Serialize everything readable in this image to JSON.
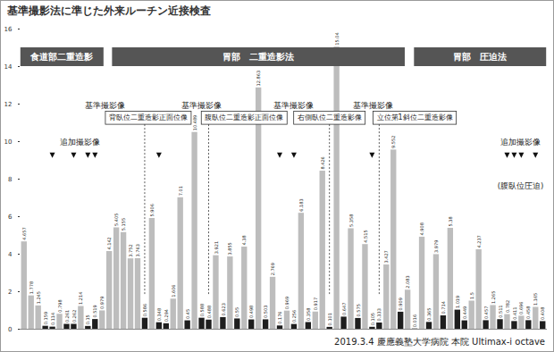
{
  "chart_data": {
    "type": "bar",
    "title": "基準撮影法に準じた外来ルーチン近接検査",
    "categories": [
      null,
      null,
      null,
      null,
      null,
      null,
      null,
      null,
      null,
      null,
      null,
      null,
      null,
      null,
      null,
      null,
      null,
      null,
      null,
      null,
      null,
      null,
      null,
      null,
      null,
      null,
      null,
      null,
      null,
      null,
      null,
      null,
      null,
      null,
      null,
      null,
      null,
      null,
      null,
      null,
      null,
      null,
      null,
      null,
      null,
      null,
      null,
      null,
      null,
      null,
      null,
      null,
      null,
      null,
      null,
      null,
      null,
      null,
      null,
      null,
      null,
      null,
      null,
      null,
      null,
      null,
      null,
      null,
      null,
      null,
      null,
      null,
      null,
      null
    ],
    "values": [
      4.657,
      1.778,
      1.245,
      0.159,
      0.114,
      0.798,
      0.261,
      0.262,
      1.214,
      0.15,
      0.519,
      0.979,
      4.142,
      5.405,
      5.155,
      3.752,
      3.763,
      0.586,
      5.906,
      0.348,
      0.294,
      1.606,
      7.01,
      0.45,
      10.489,
      0.588,
      0.488,
      3.921,
      0.623,
      3.855,
      0.55,
      4.38,
      0.498,
      12.863,
      0.503,
      2.769,
      0.176,
      0.969,
      0.256,
      6.183,
      0.358,
      0.917,
      8.426,
      0.101,
      15.04,
      0.647,
      5.358,
      0.575,
      4.515,
      0.105,
      0.333,
      3.427,
      9.552,
      0.909,
      2.083,
      0.016,
      4.908,
      0.365,
      3.979,
      0.714,
      5.38,
      1.019,
      0.449,
      1.5,
      4.237,
      0.457,
      1.265,
      0.511,
      0.782,
      0.411,
      0.696,
      0.458,
      1.165,
      0.408
    ],
    "colors": [
      "#bdbdbd",
      "#bdbdbd",
      "#bdbdbd",
      "#1e1e1e",
      "#1e1e1e",
      "#bdbdbd",
      "#1e1e1e",
      "#1e1e1e",
      "#bdbdbd",
      "#1e1e1e",
      "#1e1e1e",
      "#bdbdbd",
      "#bdbdbd",
      "#bdbdbd",
      "#bdbdbd",
      "#bdbdbd",
      "#bdbdbd",
      "#1e1e1e",
      "#bdbdbd",
      "#1e1e1e",
      "#1e1e1e",
      "#bdbdbd",
      "#bdbdbd",
      "#1e1e1e",
      "#bdbdbd",
      "#1e1e1e",
      "#1e1e1e",
      "#bdbdbd",
      "#1e1e1e",
      "#bdbdbd",
      "#1e1e1e",
      "#bdbdbd",
      "#1e1e1e",
      "#bdbdbd",
      "#1e1e1e",
      "#bdbdbd",
      "#1e1e1e",
      "#bdbdbd",
      "#1e1e1e",
      "#bdbdbd",
      "#1e1e1e",
      "#bdbdbd",
      "#bdbdbd",
      "#1e1e1e",
      "#bdbdbd",
      "#1e1e1e",
      "#bdbdbd",
      "#1e1e1e",
      "#bdbdbd",
      "#1e1e1e",
      "#1e1e1e",
      "#bdbdbd",
      "#bdbdbd",
      "#1e1e1e",
      "#bdbdbd",
      "#1e1e1e",
      "#bdbdbd",
      "#1e1e1e",
      "#bdbdbd",
      "#1e1e1e",
      "#bdbdbd",
      "#1e1e1e",
      "#1e1e1e",
      "#bdbdbd",
      "#bdbdbd",
      "#1e1e1e",
      "#bdbdbd",
      "#1e1e1e",
      "#bdbdbd",
      "#1e1e1e",
      "#bdbdbd",
      "#1e1e1e",
      "#bdbdbd",
      "#1e1e1e"
    ],
    "ylim": [
      0,
      16
    ],
    "yticks": [
      0,
      2,
      4,
      6,
      8,
      10,
      12,
      14,
      16
    ],
    "grid": false,
    "data_labels": true,
    "tick_labels": "y",
    "annotations": {
      "sections": [
        "食道部二重造影",
        "胃部　二重造影法",
        "胃部　圧迫法"
      ],
      "reference_views": [
        {
          "label": "基準撮影像",
          "view": "背臥位二重造影正面位像"
        },
        {
          "label": "基準撮影像",
          "view": "腹臥位二重造影正面位像"
        },
        {
          "label": "基準撮影像",
          "view": "右側臥位二重造影像"
        },
        {
          "label": "基準撮影像",
          "view": "立位第1斜位二重造影像"
        }
      ],
      "additional": [
        {
          "label": "追加撮影像"
        },
        {
          "label": "追加撮影像",
          "note": "(腹臥位圧迫)"
        }
      ],
      "caption": "2019.3.4 慶應義塾大学病院 本院 Ultimax-i octave"
    }
  }
}
